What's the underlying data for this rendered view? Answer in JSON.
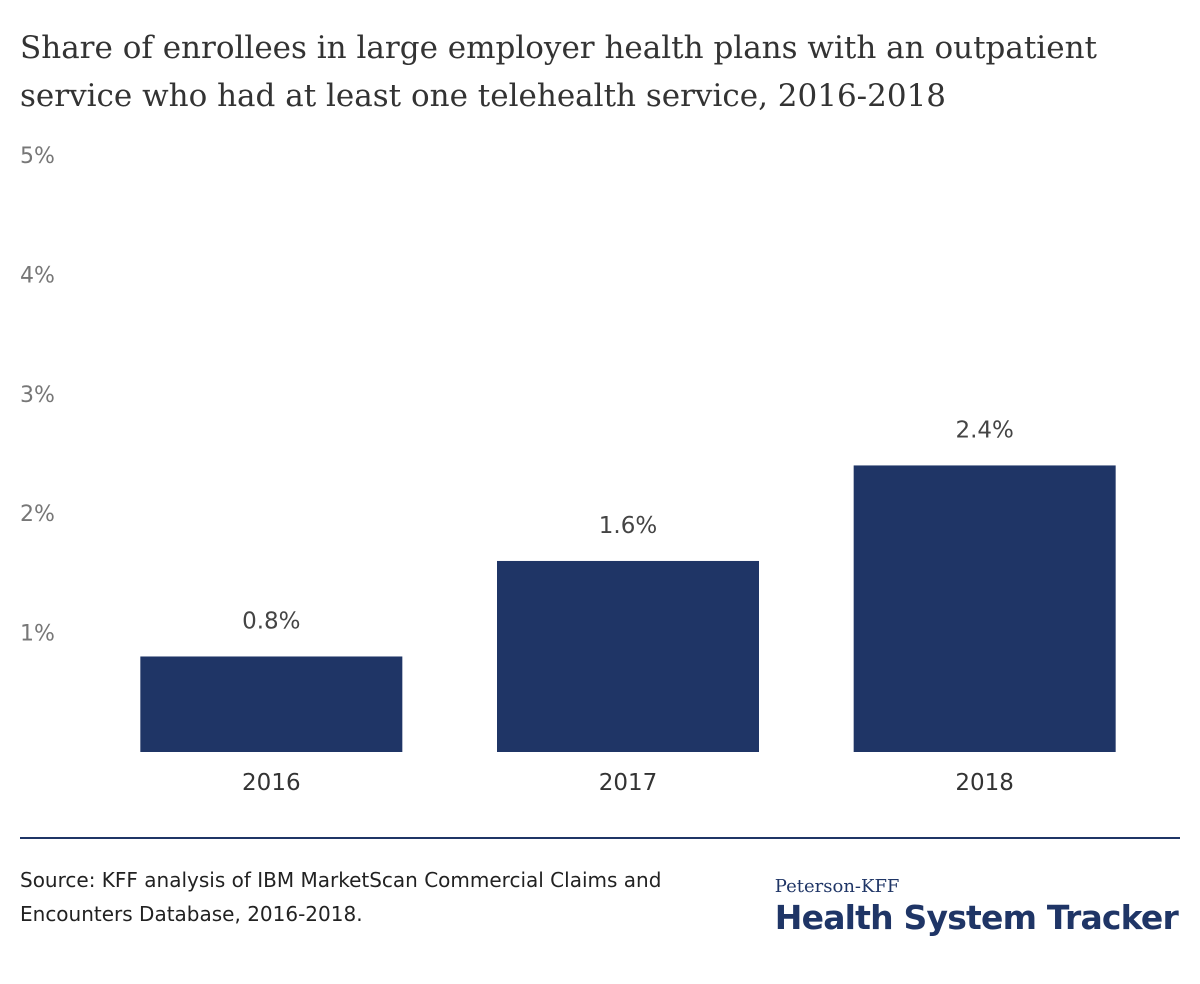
{
  "chart_data": {
    "type": "bar",
    "title": "Share of enrollees in large employer health plans with an outpatient service who had at least one telehealth service, 2016-2018",
    "categories": [
      "2016",
      "2017",
      "2018"
    ],
    "values": [
      0.8,
      1.6,
      2.4
    ],
    "data_labels": [
      "0.8%",
      "1.6%",
      "2.4%"
    ],
    "ylim": [
      0,
      5
    ],
    "yticks": [
      1,
      2,
      3,
      4,
      5
    ],
    "ytick_labels": [
      "1%",
      "2%",
      "3%",
      "4%",
      "5%"
    ],
    "xlabel": "",
    "ylabel": "",
    "grid": false,
    "bar_color": "#1f3566",
    "axis_label_color": "#777777",
    "data_label_color": "#444444"
  },
  "footer": {
    "source": "Source: KFF analysis of IBM MarketScan Commercial Claims and Encounters Database, 2016-2018."
  },
  "brand": {
    "top": "Peterson-KFF",
    "main": "Health System Tracker"
  }
}
